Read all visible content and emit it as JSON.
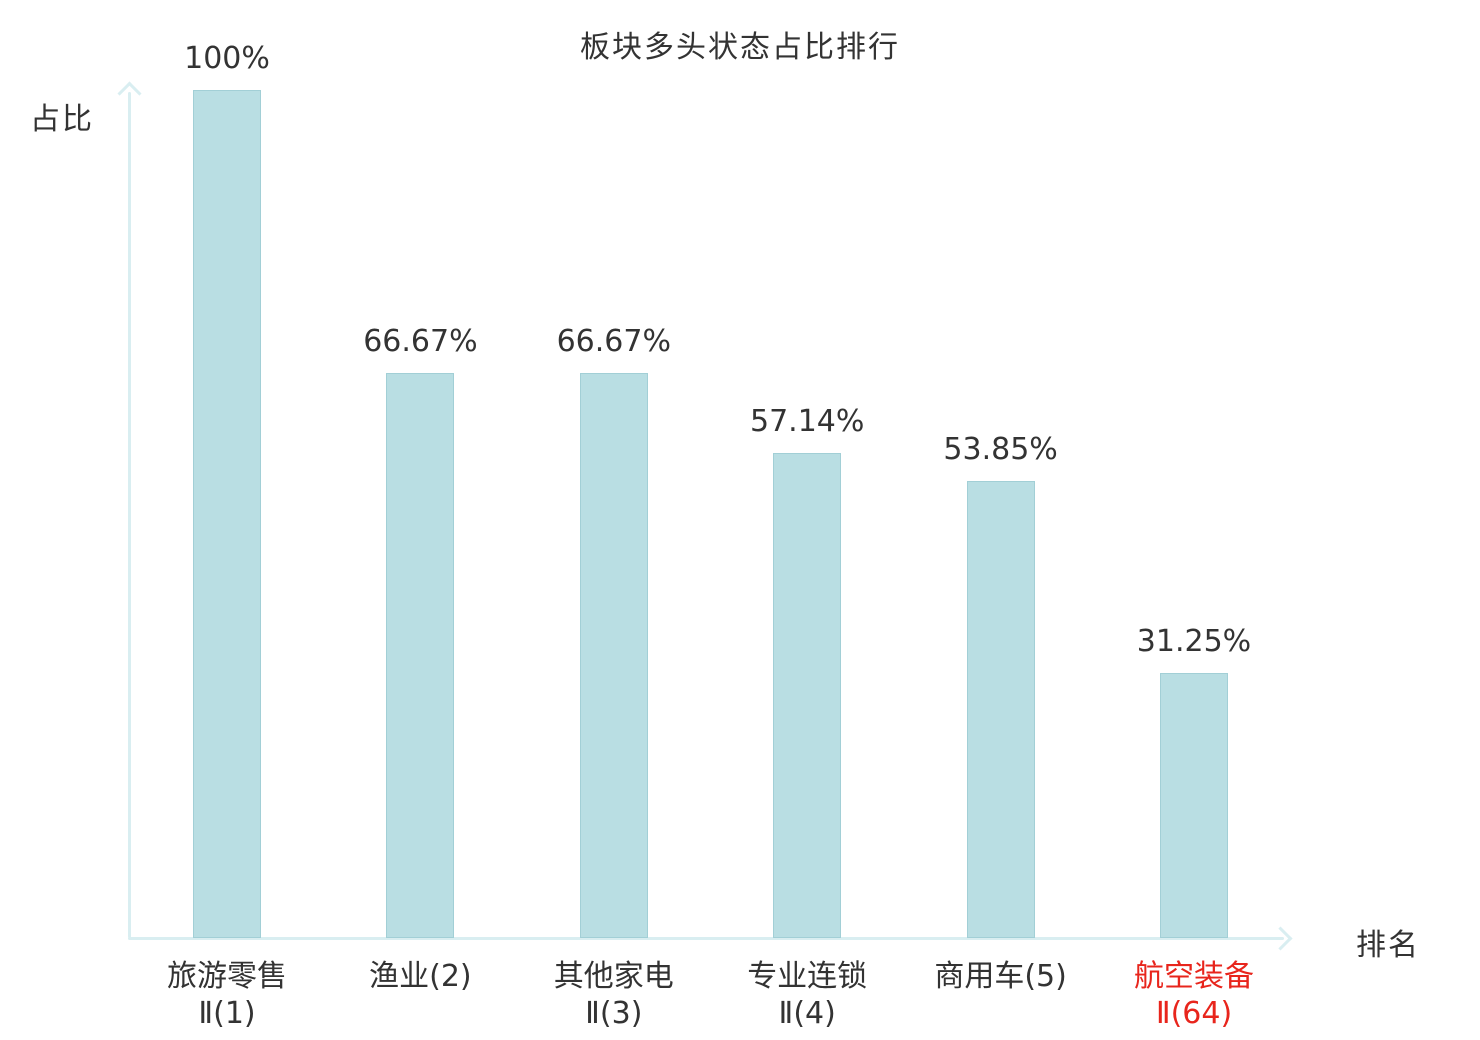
{
  "chart_data": {
    "type": "bar",
    "title": "板块多头状态占比排行",
    "xlabel": "排名",
    "ylabel": "占比",
    "ylim": [
      0,
      100
    ],
    "grid": false,
    "legend": false,
    "bar_color": "#b9dee3",
    "bar_border_color": "#a2cfd6",
    "axis_color": "#d9eef1",
    "label_color": "#333333",
    "highlight_color": "#e8251c",
    "categories": [
      "旅游零售Ⅱ(1)",
      "渔业(2)",
      "其他家电Ⅱ(3)",
      "专业连锁Ⅱ(4)",
      "商用车(5)",
      "航空装备Ⅱ(64)"
    ],
    "values": [
      100,
      66.67,
      66.67,
      57.14,
      53.85,
      31.25
    ],
    "bars": [
      {
        "name": "旅游零售Ⅱ(1)",
        "label_lines": [
          "旅游零售",
          "Ⅱ(1)"
        ],
        "value": 100,
        "value_label": "100%",
        "highlight": false
      },
      {
        "name": "渔业(2)",
        "label_lines": [
          "渔业(2)"
        ],
        "value": 66.67,
        "value_label": "66.67%",
        "highlight": false
      },
      {
        "name": "其他家电Ⅱ(3)",
        "label_lines": [
          "其他家电",
          "Ⅱ(3)"
        ],
        "value": 66.67,
        "value_label": "66.67%",
        "highlight": false
      },
      {
        "name": "专业连锁Ⅱ(4)",
        "label_lines": [
          "专业连锁",
          "Ⅱ(4)"
        ],
        "value": 57.14,
        "value_label": "57.14%",
        "highlight": false
      },
      {
        "name": "商用车(5)",
        "label_lines": [
          "商用车(5)"
        ],
        "value": 53.85,
        "value_label": "53.85%",
        "highlight": false
      },
      {
        "name": "航空装备Ⅱ(64)",
        "label_lines": [
          "航空装备",
          "Ⅱ(64)"
        ],
        "value": 31.25,
        "value_label": "31.25%",
        "highlight": true
      }
    ]
  }
}
